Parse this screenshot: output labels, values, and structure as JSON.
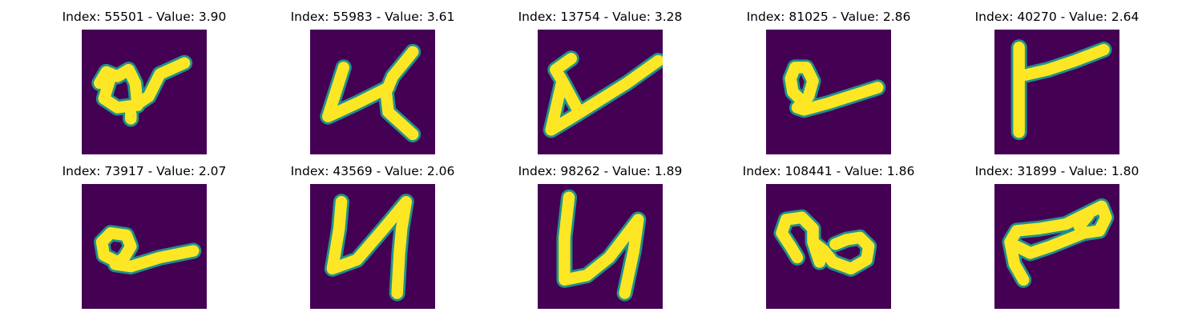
{
  "colors": {
    "image_background": "#440154",
    "stroke_core": "#fde725",
    "stroke_edge": "#21918c"
  },
  "panels": [
    {
      "title": "Index: 55501 - Value: 3.90"
    },
    {
      "title": "Index: 55983 - Value: 3.61"
    },
    {
      "title": "Index: 13754 - Value: 3.28"
    },
    {
      "title": "Index: 81025 - Value: 2.86"
    },
    {
      "title": "Index: 40270 - Value: 2.64"
    },
    {
      "title": "Index: 73917 - Value: 2.07"
    },
    {
      "title": "Index: 43569 - Value: 2.06"
    },
    {
      "title": "Index: 98262 - Value: 1.89"
    },
    {
      "title": "Index: 108441 - Value: 1.86"
    },
    {
      "title": "Index: 31899 - Value: 1.80"
    }
  ]
}
